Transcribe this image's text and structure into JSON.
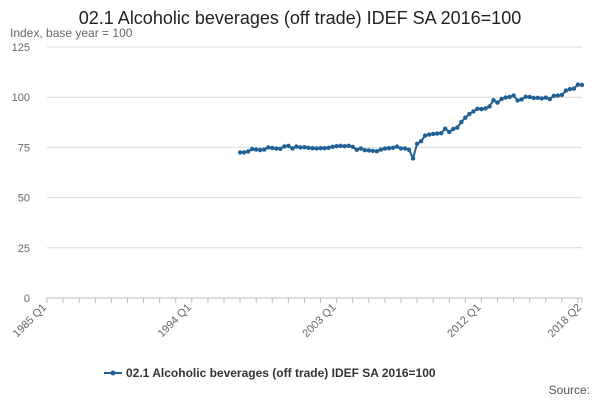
{
  "chart_data": {
    "type": "line",
    "title": "02.1 Alcoholic beverages (off trade) IDEF SA 2016=100",
    "subtitle": "Index, base year = 100",
    "xlabel": "",
    "ylabel": "",
    "ylim": [
      0,
      125
    ],
    "y_ticks": [
      "0",
      "25",
      "50",
      "75",
      "100",
      "125"
    ],
    "x_ticks": [
      "1985 Q1",
      "1994 Q1",
      "2003 Q1",
      "2012 Q1",
      "2018 Q2"
    ],
    "x_range": [
      "1985 Q1",
      "2018 Q2"
    ],
    "grid": true,
    "legend_position": "bottom",
    "source_label": "Source:",
    "colors": {
      "series": "#206095",
      "grid": "#d9d9d9",
      "axis": "#bbbbbb"
    },
    "series": [
      {
        "name": "02.1 Alcoholic beverages (off trade) IDEF SA 2016=100",
        "x": [
          "1997 Q1",
          "1997 Q2",
          "1997 Q3",
          "1997 Q4",
          "1998 Q1",
          "1998 Q2",
          "1998 Q3",
          "1998 Q4",
          "1999 Q1",
          "1999 Q2",
          "1999 Q3",
          "1999 Q4",
          "2000 Q1",
          "2000 Q2",
          "2000 Q3",
          "2000 Q4",
          "2001 Q1",
          "2001 Q2",
          "2001 Q3",
          "2001 Q4",
          "2002 Q1",
          "2002 Q2",
          "2002 Q3",
          "2002 Q4",
          "2003 Q1",
          "2003 Q2",
          "2003 Q3",
          "2003 Q4",
          "2004 Q1",
          "2004 Q2",
          "2004 Q3",
          "2004 Q4",
          "2005 Q1",
          "2005 Q2",
          "2005 Q3",
          "2005 Q4",
          "2006 Q1",
          "2006 Q2",
          "2006 Q3",
          "2006 Q4",
          "2007 Q1",
          "2007 Q2",
          "2007 Q3",
          "2007 Q4",
          "2008 Q1",
          "2008 Q2",
          "2008 Q3",
          "2008 Q4",
          "2009 Q1",
          "2009 Q2",
          "2009 Q3",
          "2009 Q4",
          "2010 Q1",
          "2010 Q2",
          "2010 Q3",
          "2010 Q4",
          "2011 Q1",
          "2011 Q2",
          "2011 Q3",
          "2011 Q4",
          "2012 Q1",
          "2012 Q2",
          "2012 Q3",
          "2012 Q4",
          "2013 Q1",
          "2013 Q2",
          "2013 Q3",
          "2013 Q4",
          "2014 Q1",
          "2014 Q2",
          "2014 Q3",
          "2014 Q4",
          "2015 Q1",
          "2015 Q2",
          "2015 Q3",
          "2015 Q4",
          "2016 Q1",
          "2016 Q2",
          "2016 Q3",
          "2016 Q4",
          "2017 Q1",
          "2017 Q2",
          "2017 Q3",
          "2017 Q4",
          "2018 Q1",
          "2018 Q2"
        ],
        "values": [
          72.5,
          72.5,
          73,
          74.2,
          73.9,
          73.7,
          73.9,
          75,
          74.7,
          74.4,
          74.3,
          75.5,
          75.8,
          74.5,
          75.4,
          75,
          75.1,
          74.8,
          74.6,
          74.5,
          74.6,
          74.6,
          74.8,
          75.3,
          75.6,
          75.8,
          75.6,
          75.8,
          75.3,
          73.8,
          74.5,
          73.6,
          73.5,
          73.3,
          73.1,
          73.9,
          74.4,
          74.6,
          74.8,
          75.4,
          74.5,
          74.5,
          73.8,
          69.5,
          76.8,
          78.1,
          80.9,
          81.4,
          81.7,
          81.9,
          82.1,
          84.3,
          82.7,
          84.2,
          84.9,
          87.6,
          89.8,
          91.6,
          92.9,
          94.2,
          94.1,
          94.4,
          95.4,
          98.5,
          97.3,
          99.1,
          99.8,
          100.1,
          100.8,
          98.4,
          98.9,
          100.2,
          100.1,
          99.6,
          99.7,
          99.4,
          99.8,
          99.1,
          100.7,
          100.8,
          101.1,
          103.3,
          104,
          104.3,
          106.3,
          106.1
        ]
      }
    ]
  }
}
